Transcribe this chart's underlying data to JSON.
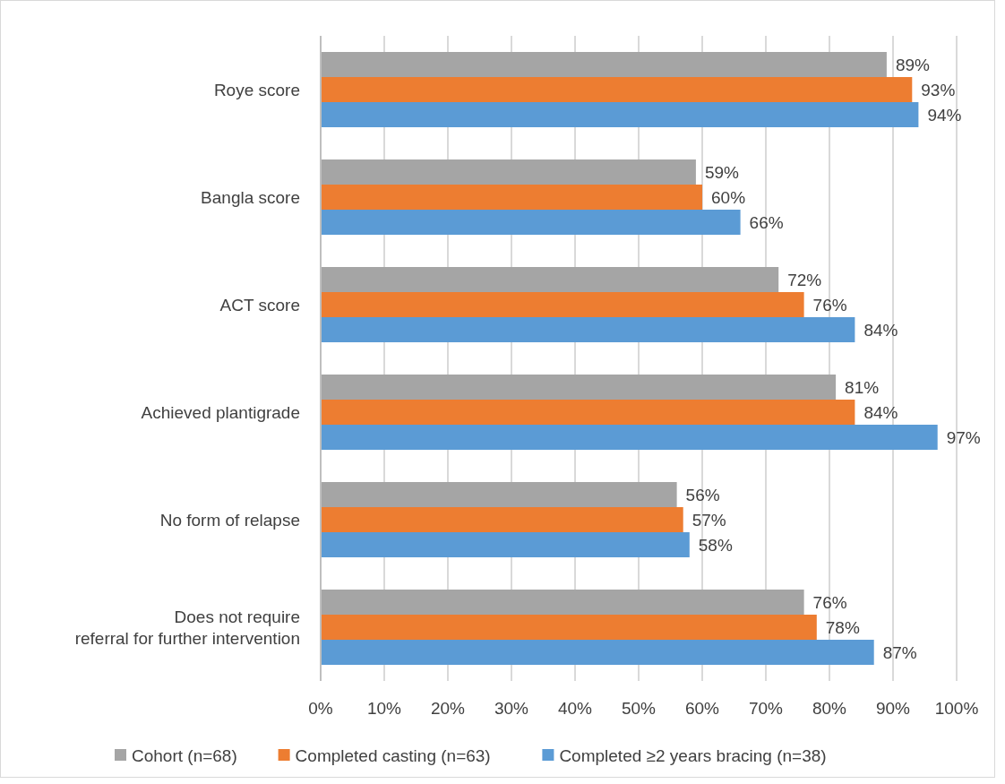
{
  "chart_data": {
    "type": "bar",
    "orientation": "horizontal",
    "categories": [
      "Roye score",
      "Bangla score",
      "ACT score",
      "Achieved plantigrade",
      "No form of relapse",
      "Does not require\nreferral for further intervention"
    ],
    "series": [
      {
        "name": "Cohort (n=68)",
        "color": "#a5a5a5",
        "values": [
          89,
          59,
          72,
          81,
          56,
          76
        ],
        "value_labels": [
          "89%",
          "59%",
          "72%",
          "81%",
          "56%",
          "76%"
        ]
      },
      {
        "name": "Completed casting (n=63)",
        "color": "#ed7d31",
        "values": [
          93,
          60,
          76,
          84,
          57,
          78
        ],
        "value_labels": [
          "93%",
          "60%",
          "76%",
          "84%",
          "57%",
          "78%"
        ]
      },
      {
        "name": "Completed ≥2 years bracing (n=38)",
        "color": "#5b9bd5",
        "values": [
          94,
          66,
          84,
          97,
          58,
          87
        ],
        "value_labels": [
          "94%",
          "66%",
          "84%",
          "97%",
          "58%",
          "87%"
        ]
      }
    ],
    "xlim": [
      0,
      100
    ],
    "xticks": [
      {
        "value": 0,
        "label": "0%"
      },
      {
        "value": 10,
        "label": "10%"
      },
      {
        "value": 20,
        "label": "20%"
      },
      {
        "value": 30,
        "label": "30%"
      },
      {
        "value": 40,
        "label": "40%"
      },
      {
        "value": 50,
        "label": "50%"
      },
      {
        "value": 60,
        "label": "60%"
      },
      {
        "value": 70,
        "label": "70%"
      },
      {
        "value": 80,
        "label": "80%"
      },
      {
        "value": 90,
        "label": "90%"
      },
      {
        "value": 100,
        "label": "100%"
      }
    ],
    "grid": "x",
    "legend": "bottom"
  }
}
